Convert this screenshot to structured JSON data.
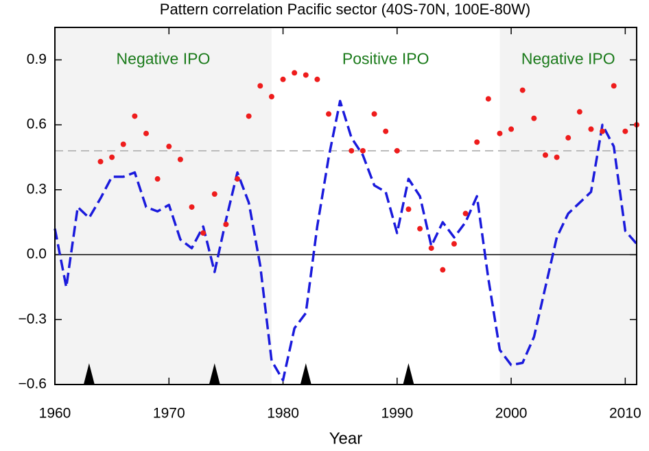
{
  "chart_data": {
    "type": "line",
    "title": "Pattern correlation Pacific sector (40S-70N, 100E-80W)",
    "x_label": "Year",
    "xlim": [
      1960,
      2011
    ],
    "ylim": [
      -0.6,
      1.05
    ],
    "xticks": [
      1960,
      1970,
      1980,
      1990,
      2000,
      2010
    ],
    "yticks": [
      {
        "value": -0.6,
        "label": "−0.6"
      },
      {
        "value": -0.3,
        "label": "−0.3"
      },
      {
        "value": 0,
        "label": "0.0"
      },
      0.3,
      0.6,
      0.9
    ],
    "periods": [
      {
        "label": "Negative IPO",
        "start": 1960,
        "end": 1979,
        "shaded": true
      },
      {
        "label": "Positive IPO",
        "start": 1979,
        "end": 1999,
        "shaded": false
      },
      {
        "label": "Negative IPO",
        "start": 1999,
        "end": 2011,
        "shaded": true
      }
    ],
    "period_label_color": "#1a7a1a",
    "reference_line": 0.48,
    "event_years": [
      1963,
      1974,
      1982,
      1991
    ],
    "series": [
      {
        "style": "dashed-line",
        "color": "#1a1adc",
        "x": [
          1960,
          1961,
          1962,
          1963,
          1964,
          1965,
          1966,
          1967,
          1968,
          1969,
          1970,
          1971,
          1972,
          1973,
          1974,
          1975,
          1976,
          1977,
          1978,
          1979,
          1980,
          1981,
          1982,
          1983,
          1984,
          1985,
          1986,
          1987,
          1988,
          1989,
          1990,
          1991,
          1992,
          1993,
          1994,
          1995,
          1996,
          1997,
          1998,
          1999,
          2000,
          2001,
          2002,
          2003,
          2004,
          2005,
          2006,
          2007,
          2008,
          2009,
          2010,
          2011
        ],
        "values": [
          0.12,
          -0.15,
          0.22,
          0.17,
          0.26,
          0.36,
          0.36,
          0.38,
          0.22,
          0.2,
          0.23,
          0.07,
          0.03,
          0.13,
          -0.08,
          0.16,
          0.38,
          0.24,
          -0.05,
          -0.49,
          -0.58,
          -0.34,
          -0.27,
          0.13,
          0.45,
          0.71,
          0.54,
          0.46,
          0.32,
          0.29,
          0.1,
          0.35,
          0.27,
          0.04,
          0.15,
          0.08,
          0.15,
          0.27,
          -0.11,
          -0.44,
          -0.51,
          -0.5,
          -0.38,
          -0.15,
          0.08,
          0.19,
          0.24,
          0.29,
          0.6,
          0.5,
          0.11,
          0.05
        ]
      },
      {
        "style": "dots",
        "color": "#ee1c1c",
        "x": [
          1964,
          1965,
          1966,
          1967,
          1968,
          1969,
          1970,
          1971,
          1972,
          1973,
          1974,
          1975,
          1976,
          1977,
          1978,
          1979,
          1980,
          1981,
          1982,
          1983,
          1984,
          1986,
          1987,
          1988,
          1989,
          1990,
          1991,
          1992,
          1993,
          1994,
          1995,
          1996,
          1997,
          1998,
          1999,
          2000,
          2001,
          2002,
          2003,
          2004,
          2005,
          2006,
          2007,
          2008,
          2009,
          2010,
          2011
        ],
        "values": [
          0.43,
          0.45,
          0.51,
          0.64,
          0.56,
          0.35,
          0.5,
          0.44,
          0.22,
          0.1,
          0.28,
          0.14,
          0.35,
          0.64,
          0.78,
          0.73,
          0.81,
          0.84,
          0.83,
          0.81,
          0.65,
          0.48,
          0.48,
          0.65,
          0.57,
          0.48,
          0.21,
          0.12,
          0.03,
          -0.07,
          0.05,
          0.19,
          0.52,
          0.72,
          0.56,
          0.58,
          0.76,
          0.63,
          0.46,
          0.45,
          0.54,
          0.66,
          0.58,
          0.57,
          0.78,
          0.57,
          0.6
        ]
      }
    ]
  }
}
